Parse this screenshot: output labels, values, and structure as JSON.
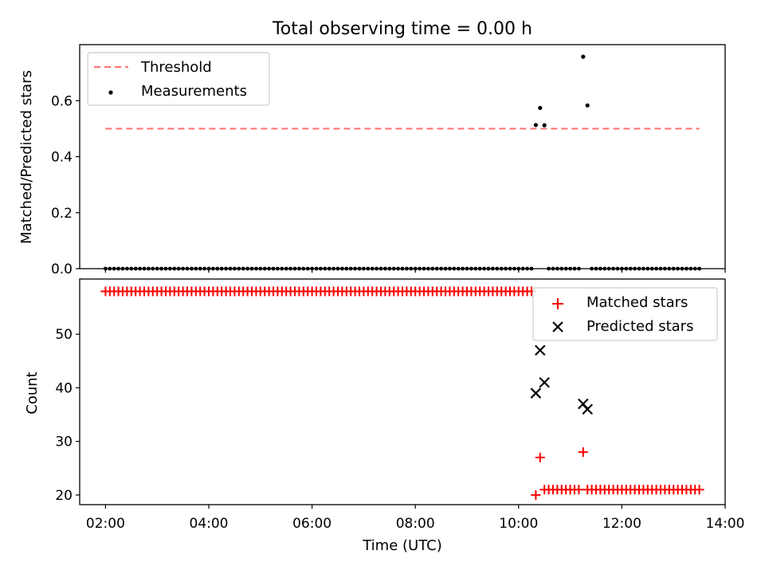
{
  "chart_data": [
    {
      "type": "scatter",
      "title": "Total observing time = 0.00 h",
      "ylabel": "Matched/Predicted stars",
      "xlabel": "",
      "ylim": [
        0,
        0.8
      ],
      "yticks": [
        "0.0",
        "0.2",
        "0.4",
        "0.6"
      ],
      "legend_position": "upper-left",
      "threshold": {
        "name": "Threshold",
        "value": 0.5,
        "x_range": [
          "02:00",
          "13:30"
        ],
        "color": "#ff7070",
        "style": "dashed"
      },
      "measurements": {
        "name": "Measurements",
        "color": "#000000",
        "zero_segments": [
          {
            "from": "02:00",
            "to": "10:15",
            "step_min": 5
          },
          {
            "from": "10:35",
            "to": "11:10",
            "step_min": 5
          },
          {
            "from": "11:25",
            "to": "13:30",
            "step_min": 5
          }
        ],
        "points": [
          {
            "x": "10:20",
            "y": 0.513
          },
          {
            "x": "10:25",
            "y": 0.574
          },
          {
            "x": "10:30",
            "y": 0.512
          },
          {
            "x": "11:15",
            "y": 0.757
          },
          {
            "x": "11:20",
            "y": 0.583
          }
        ]
      }
    },
    {
      "type": "scatter",
      "title": "",
      "xlabel": "Time (UTC)",
      "ylabel": "Count",
      "xlim": [
        "01:30",
        "14:00"
      ],
      "xticks": [
        "02:00",
        "04:00",
        "06:00",
        "08:00",
        "10:00",
        "12:00",
        "14:00"
      ],
      "ylim": [
        18.2,
        60.3
      ],
      "yticks": [
        "20",
        "30",
        "40",
        "50"
      ],
      "legend_position": "upper-right",
      "matched": {
        "name": "Matched stars",
        "color": "#ff0000",
        "marker": "+",
        "constant_segments": [
          {
            "from": "02:00",
            "to": "10:15",
            "step_min": 5,
            "value": 58
          },
          {
            "from": "10:35",
            "to": "11:10",
            "step_min": 5,
            "value": 21
          },
          {
            "from": "11:25",
            "to": "13:30",
            "step_min": 5,
            "value": 21
          }
        ],
        "points": [
          {
            "x": "10:20",
            "y": 20
          },
          {
            "x": "10:25",
            "y": 27
          },
          {
            "x": "10:30",
            "y": 21
          },
          {
            "x": "11:15",
            "y": 28
          },
          {
            "x": "11:20",
            "y": 21
          }
        ]
      },
      "predicted": {
        "name": "Predicted stars",
        "color": "#000000",
        "marker": "x",
        "points": [
          {
            "x": "10:20",
            "y": 39
          },
          {
            "x": "10:25",
            "y": 47
          },
          {
            "x": "10:30",
            "y": 41
          },
          {
            "x": "11:15",
            "y": 37
          },
          {
            "x": "11:20",
            "y": 36
          }
        ]
      }
    }
  ]
}
